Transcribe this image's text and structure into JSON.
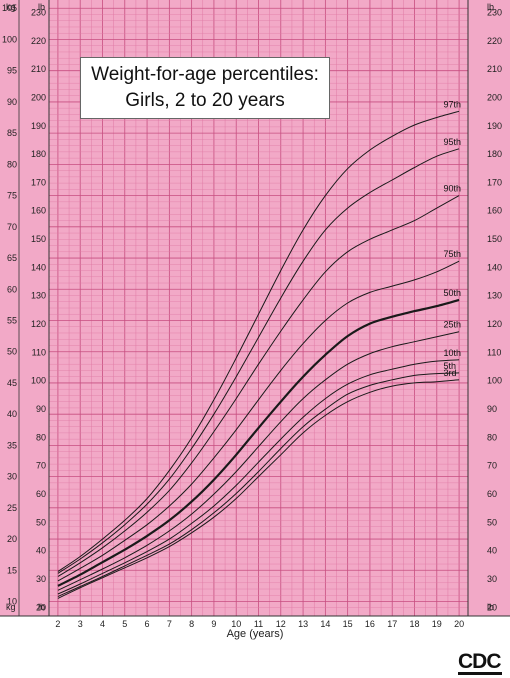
{
  "chart_data": {
    "type": "line",
    "title": "Weight-for-age percentiles:",
    "subtitle": "Girls, 2 to 20 years",
    "xlabel": "Age (years)",
    "x": [
      2,
      3,
      4,
      5,
      6,
      7,
      8,
      9,
      10,
      11,
      12,
      13,
      14,
      15,
      16,
      17,
      18,
      19,
      20
    ],
    "xlim": [
      1.6,
      20.4
    ],
    "ylim_kg": [
      8,
      106
    ],
    "unit_left": "kg",
    "unit_right": "lb",
    "grid": true,
    "kg_ticks": [
      10,
      15,
      20,
      25,
      30,
      35,
      40,
      45,
      50,
      55,
      60,
      65,
      70,
      75,
      80,
      85,
      90,
      95,
      100,
      105
    ],
    "lb_ticks": [
      20,
      30,
      40,
      50,
      60,
      70,
      80,
      90,
      100,
      110,
      120,
      130,
      140,
      150,
      160,
      170,
      180,
      190,
      200,
      210,
      220,
      230
    ],
    "series": [
      {
        "name": "3rd",
        "values": [
          10.5,
          12.2,
          13.8,
          15.4,
          17.0,
          18.8,
          21.0,
          23.5,
          26.5,
          30.0,
          33.5,
          37.0,
          39.8,
          42.0,
          43.5,
          44.5,
          45.0,
          45.2,
          45.5
        ]
      },
      {
        "name": "5th",
        "values": [
          10.8,
          12.4,
          14.0,
          15.7,
          17.4,
          19.2,
          21.5,
          24.2,
          27.3,
          30.8,
          34.5,
          38.0,
          40.8,
          43.2,
          44.6,
          45.5,
          46.2,
          46.5,
          46.6
        ]
      },
      {
        "name": "10th",
        "values": [
          11.2,
          12.8,
          14.5,
          16.2,
          18.0,
          20.0,
          22.5,
          25.3,
          28.6,
          32.3,
          36.0,
          39.5,
          42.5,
          44.8,
          46.3,
          47.2,
          48.0,
          48.5,
          48.7
        ]
      },
      {
        "name": "25th",
        "values": [
          11.8,
          13.5,
          15.2,
          17.0,
          19.0,
          21.3,
          24.0,
          27.2,
          30.8,
          34.8,
          38.8,
          42.5,
          45.5,
          48.0,
          49.7,
          50.8,
          51.6,
          52.4,
          53.2
        ]
      },
      {
        "name": "50th",
        "values": [
          12.5,
          14.3,
          16.3,
          18.3,
          20.5,
          23.0,
          26.0,
          29.5,
          33.5,
          37.8,
          42.0,
          46.0,
          49.5,
          52.5,
          54.5,
          55.6,
          56.5,
          57.3,
          58.3
        ]
      },
      {
        "name": "75th",
        "values": [
          13.3,
          15.3,
          17.4,
          19.8,
          22.3,
          25.3,
          28.8,
          33.0,
          37.5,
          42.3,
          47.0,
          51.3,
          55.0,
          57.8,
          59.5,
          60.5,
          61.5,
          62.8,
          64.5
        ]
      },
      {
        "name": "90th",
        "values": [
          14.0,
          16.2,
          18.6,
          21.3,
          24.3,
          27.8,
          32.2,
          37.2,
          42.5,
          48.0,
          53.3,
          58.3,
          62.8,
          66.0,
          68.0,
          69.5,
          71.0,
          73.0,
          75.0
        ]
      },
      {
        "name": "95th",
        "values": [
          14.5,
          16.8,
          19.4,
          22.3,
          25.6,
          29.6,
          34.5,
          40.0,
          46.0,
          52.3,
          58.6,
          64.5,
          69.5,
          73.0,
          75.5,
          77.5,
          79.5,
          81.3,
          82.5
        ]
      },
      {
        "name": "97th",
        "values": [
          14.8,
          17.2,
          20.0,
          23.0,
          26.5,
          31.0,
          36.2,
          42.3,
          49.0,
          56.0,
          63.0,
          69.5,
          75.0,
          79.3,
          82.3,
          84.5,
          86.3,
          87.5,
          88.5
        ]
      }
    ]
  },
  "colors": {
    "background": "#f2a9c7",
    "grid_minor": "#e07aa5",
    "grid_major": "#c74e80",
    "margin": "#ffffff",
    "curve": "#1a1a1a"
  },
  "logo": {
    "text": "CDC"
  }
}
